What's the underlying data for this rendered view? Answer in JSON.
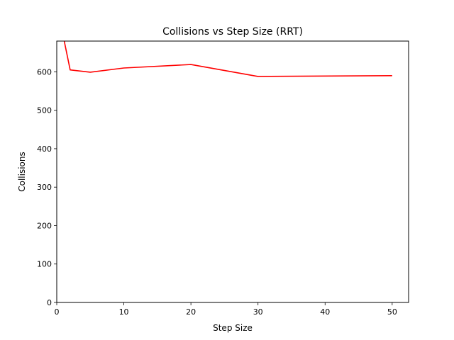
{
  "chart_data": {
    "type": "line",
    "title": "Collisions vs Step Size (RRT)",
    "xlabel": "Step Size",
    "ylabel": "Collisions",
    "xlim": [
      0,
      52.45
    ],
    "ylim": [
      0,
      680
    ],
    "x_ticks": [
      "0",
      "10",
      "20",
      "30",
      "40",
      "50"
    ],
    "y_ticks": [
      "0",
      "100",
      "200",
      "300",
      "400",
      "500",
      "600"
    ],
    "grid": false,
    "series": [
      {
        "color": "#ff0000",
        "x": [
          1,
          2,
          5,
          10,
          20,
          30,
          50
        ],
        "y": [
          690,
          605,
          599,
          610,
          619,
          588,
          590
        ]
      }
    ]
  }
}
